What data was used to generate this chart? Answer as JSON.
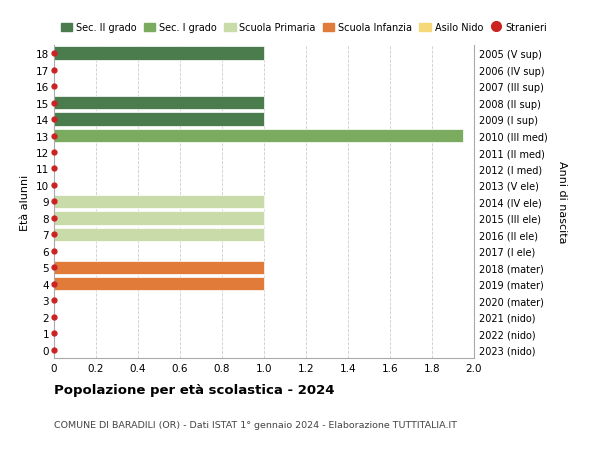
{
  "title": "Popolazione per età scolastica - 2024",
  "subtitle": "COMUNE DI BARADILI (OR) - Dati ISTAT 1° gennaio 2024 - Elaborazione TUTTITALIA.IT",
  "ylabel_left": "Età alunni",
  "ylabel_right": "Anni di nascita",
  "xlim": [
    0,
    2.0
  ],
  "ylim": [
    -0.5,
    18.5
  ],
  "yticks": [
    0,
    1,
    2,
    3,
    4,
    5,
    6,
    7,
    8,
    9,
    10,
    11,
    12,
    13,
    14,
    15,
    16,
    17,
    18
  ],
  "xticks": [
    0,
    0.2,
    0.4,
    0.6,
    0.8,
    1.0,
    1.2,
    1.4,
    1.6,
    1.8,
    2.0
  ],
  "right_labels": [
    "2023 (nido)",
    "2022 (nido)",
    "2021 (nido)",
    "2020 (mater)",
    "2019 (mater)",
    "2018 (mater)",
    "2017 (I ele)",
    "2016 (II ele)",
    "2015 (III ele)",
    "2014 (IV ele)",
    "2013 (V ele)",
    "2012 (I med)",
    "2011 (II med)",
    "2010 (III med)",
    "2009 (I sup)",
    "2008 (II sup)",
    "2007 (III sup)",
    "2006 (IV sup)",
    "2005 (V sup)"
  ],
  "bars": [
    {
      "age": 18,
      "value": 1.0,
      "color": "#4a7c4e"
    },
    {
      "age": 15,
      "value": 1.0,
      "color": "#4a7c4e"
    },
    {
      "age": 14,
      "value": 1.0,
      "color": "#4a7c4e"
    },
    {
      "age": 13,
      "value": 1.95,
      "color": "#7aab5e"
    },
    {
      "age": 9,
      "value": 1.0,
      "color": "#c8dba8"
    },
    {
      "age": 8,
      "value": 1.0,
      "color": "#c8dba8"
    },
    {
      "age": 7,
      "value": 1.0,
      "color": "#c8dba8"
    },
    {
      "age": 5,
      "value": 1.0,
      "color": "#e07b39"
    },
    {
      "age": 4,
      "value": 1.0,
      "color": "#e07b39"
    }
  ],
  "red_dots": [
    0,
    1,
    2,
    3,
    4,
    5,
    6,
    7,
    8,
    9,
    10,
    11,
    12,
    13,
    14,
    15,
    16,
    17,
    18
  ],
  "legend": [
    {
      "label": "Sec. II grado",
      "color": "#4a7c4e",
      "type": "patch"
    },
    {
      "label": "Sec. I grado",
      "color": "#7aab5e",
      "type": "patch"
    },
    {
      "label": "Scuola Primaria",
      "color": "#c8dba8",
      "type": "patch"
    },
    {
      "label": "Scuola Infanzia",
      "color": "#e07b39",
      "type": "patch"
    },
    {
      "label": "Asilo Nido",
      "color": "#f5d87a",
      "type": "patch"
    },
    {
      "label": "Stranieri",
      "color": "#cc2222",
      "type": "dot"
    }
  ],
  "background_color": "#ffffff",
  "grid_color": "#cccccc",
  "bar_height": 0.82,
  "dot_color": "#cc2222",
  "dot_markersize": 3.5
}
